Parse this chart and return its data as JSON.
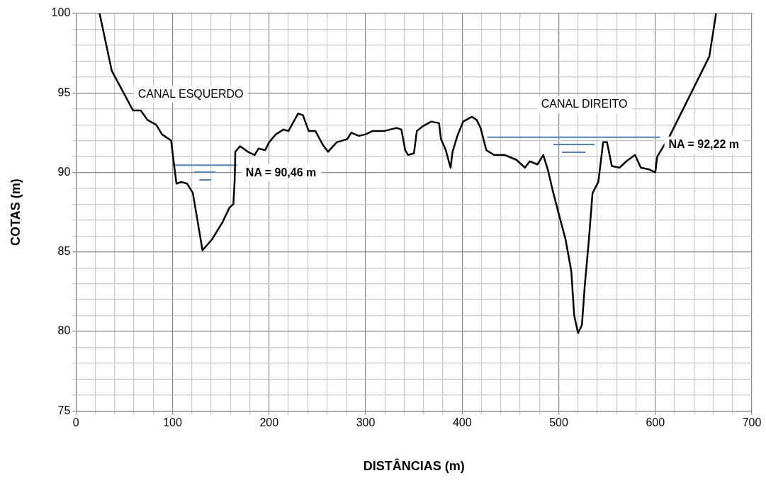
{
  "chart_data": {
    "type": "line",
    "xlabel": "DISTÂNCIAS (m)",
    "ylabel": "COTAS (m)",
    "grid": true,
    "legend": false,
    "marker": "none",
    "line_style": "solid",
    "xlim": [
      0,
      700
    ],
    "ylim": [
      75,
      100
    ],
    "xticks": [
      0,
      {
        "value": 20,
        "label": null
      },
      {
        "value": 40,
        "label": null
      },
      {
        "value": 60,
        "label": null
      },
      {
        "value": 80,
        "label": null
      },
      100,
      {
        "value": 120,
        "label": null
      },
      {
        "value": 140,
        "label": null
      },
      {
        "value": 160,
        "label": null
      },
      {
        "value": 180,
        "label": null
      },
      200,
      {
        "value": 220,
        "label": null
      },
      {
        "value": 240,
        "label": null
      },
      {
        "value": 260,
        "label": null
      },
      {
        "value": 280,
        "label": null
      },
      300,
      {
        "value": 320,
        "label": null
      },
      {
        "value": 340,
        "label": null
      },
      {
        "value": 360,
        "label": null
      },
      {
        "value": 380,
        "label": null
      },
      400,
      {
        "value": 420,
        "label": null
      },
      {
        "value": 440,
        "label": null
      },
      {
        "value": 460,
        "label": null
      },
      {
        "value": 480,
        "label": null
      },
      500,
      {
        "value": 520,
        "label": null
      },
      {
        "value": 540,
        "label": null
      },
      {
        "value": 560,
        "label": null
      },
      {
        "value": 580,
        "label": null
      },
      600,
      {
        "value": 620,
        "label": null
      },
      {
        "value": 640,
        "label": null
      },
      {
        "value": 660,
        "label": null
      },
      {
        "value": 680,
        "label": null
      },
      700
    ],
    "yticks": [
      75,
      {
        "value": 76,
        "label": null
      },
      {
        "value": 77,
        "label": null
      },
      {
        "value": 78,
        "label": null
      },
      {
        "value": 79,
        "label": null
      },
      80,
      {
        "value": 81,
        "label": null
      },
      {
        "value": 82,
        "label": null
      },
      {
        "value": 83,
        "label": null
      },
      {
        "value": 84,
        "label": null
      },
      85,
      {
        "value": 86,
        "label": null
      },
      {
        "value": 87,
        "label": null
      },
      {
        "value": 88,
        "label": null
      },
      {
        "value": 89,
        "label": null
      },
      90,
      {
        "value": 91,
        "label": null
      },
      {
        "value": 92,
        "label": null
      },
      {
        "value": 93,
        "label": null
      },
      {
        "value": 94,
        "label": null
      },
      95,
      {
        "value": 96,
        "label": null
      },
      {
        "value": 97,
        "label": null
      },
      {
        "value": 98,
        "label": null
      },
      {
        "value": 99,
        "label": null
      },
      100
    ],
    "series": [
      {
        "color": "#000000",
        "x": [
          24.4,
          37,
          59,
          67,
          74,
          83,
          89,
          98.5,
          101.5,
          104,
          109,
          115,
          121,
          131,
          141,
          152,
          159,
          163,
          164.4,
          165,
          170,
          178,
          185,
          189,
          196,
          200,
          207,
          215,
          220,
          230,
          235,
          241,
          248,
          256,
          261,
          270,
          281,
          285,
          293,
          300,
          307,
          319,
          332,
          337,
          341,
          344,
          350,
          353,
          359,
          368,
          376,
          378,
          383,
          387,
          388,
          390,
          395,
          401,
          410,
          415,
          419,
          425,
          433,
          444,
          456,
          465,
          470,
          478,
          484,
          489,
          494,
          500,
          507,
          513,
          516,
          520,
          524,
          527,
          531,
          535,
          541,
          546,
          550,
          555,
          563,
          570,
          579,
          585,
          593,
          600,
          602,
          615,
          656,
          657,
          663
        ],
        "values": [
          100,
          96.4,
          93.9,
          93.9,
          93.3,
          93,
          92.4,
          92,
          90.5,
          89.3,
          89.4,
          89.3,
          88.7,
          85.1,
          85.8,
          86.9,
          87.8,
          88,
          89.6,
          91.3,
          91.65,
          91.3,
          91.1,
          91.5,
          91.4,
          91.9,
          92.4,
          92.7,
          92.6,
          93.7,
          93.6,
          92.6,
          92.6,
          91.7,
          91.3,
          91.9,
          92.1,
          92.5,
          92.3,
          92.4,
          92.6,
          92.6,
          92.8,
          92.7,
          91.4,
          91.1,
          91.2,
          92.6,
          92.9,
          93.2,
          93.1,
          92.1,
          91.4,
          90.5,
          90.3,
          91.3,
          92.3,
          93.2,
          93.5,
          93.3,
          92.8,
          91.4,
          91.1,
          91.1,
          90.8,
          90.3,
          90.7,
          90.5,
          91.1,
          90.1,
          88.8,
          87.4,
          85.8,
          83.8,
          81,
          79.9,
          80.4,
          82.9,
          85.6,
          88.7,
          89.4,
          91.9,
          91.9,
          90.4,
          90.3,
          90.7,
          91.1,
          90.3,
          90.2,
          90,
          91,
          92.3,
          97.3,
          97.7,
          100
        ]
      },
      {
        "color": "#4f81bd",
        "x": [
          100,
          167
        ],
        "values": [
          90.46,
          90.46
        ]
      },
      {
        "color": "#4f81bd",
        "x": [
          426,
          605
        ],
        "values": [
          92.22,
          92.22
        ]
      }
    ],
    "annotations": [
      "CANAL ESQUERDO",
      "CANAL DIREITO",
      "NA = 90,46 m",
      "NA = 92,22 m"
    ]
  }
}
